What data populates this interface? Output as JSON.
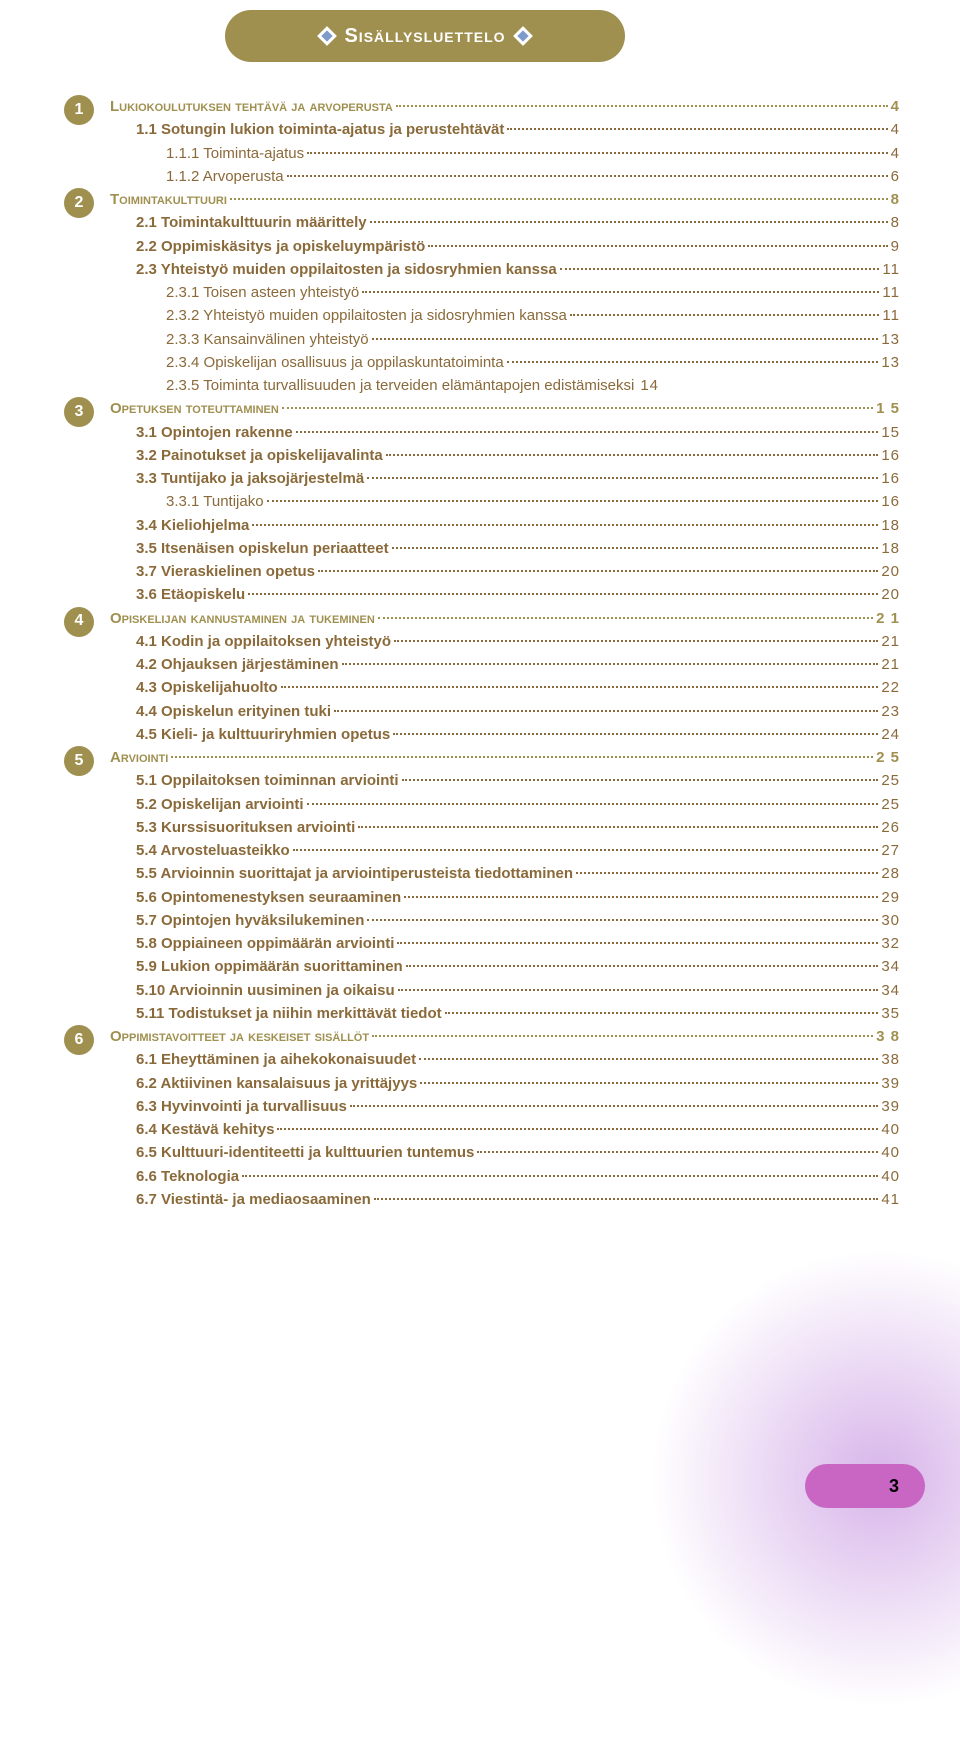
{
  "banner": {
    "title": "Sisällysluettelo"
  },
  "colors": {
    "banner_bg": "#a09050",
    "chapter_text": "#a09050",
    "entry_text": "#8a6a3a",
    "page_badge_bg": "#c966c4",
    "corner_glow": "#b778d8"
  },
  "page_number": "3",
  "toc": [
    {
      "type": "chapter",
      "num": "1",
      "label": "Lukiokoulutuksen tehtävä ja arvoperusta",
      "page": "4"
    },
    {
      "type": "section",
      "indent": 1,
      "label": "1.1 Sotungin lukion toiminta-ajatus ja perustehtävät",
      "page": "4"
    },
    {
      "type": "sub",
      "indent": 2,
      "label": "1.1.1 Toiminta-ajatus",
      "page": "4"
    },
    {
      "type": "sub",
      "indent": 2,
      "label": "1.1.2 Arvoperusta",
      "page": "6"
    },
    {
      "type": "chapter",
      "num": "2",
      "label": "Toimintakulttuuri",
      "page": "8"
    },
    {
      "type": "section",
      "indent": 1,
      "label": "2.1 Toimintakulttuurin määrittely",
      "page": "8"
    },
    {
      "type": "section",
      "indent": 1,
      "label": "2.2 Oppimiskäsitys ja opiskeluympäristö",
      "page": "9"
    },
    {
      "type": "section",
      "indent": 1,
      "label": "2.3 Yhteistyö muiden oppilaitosten ja  sidosryhmien kanssa",
      "page": "11"
    },
    {
      "type": "sub",
      "indent": 2,
      "label": "2.3.1 Toisen asteen yhteistyö",
      "page": "11"
    },
    {
      "type": "sub",
      "indent": 2,
      "label": "2.3.2 Yhteistyö muiden oppilaitosten ja sidosryhmien kanssa",
      "page": "11"
    },
    {
      "type": "sub",
      "indent": 2,
      "label": "2.3.3 Kansainvälinen yhteistyö",
      "page": "13"
    },
    {
      "type": "sub",
      "indent": 2,
      "label": "2.3.4 Opiskelijan osallisuus ja oppilaskuntatoiminta",
      "page": "13"
    },
    {
      "type": "sub-nodots",
      "indent": 2,
      "label": "2.3.5 Toiminta turvallisuuden ja terveiden elämäntapojen edistämiseksi",
      "page": "14"
    },
    {
      "type": "chapter",
      "num": "3",
      "label": "Opetuksen toteuttaminen",
      "page": "1 5"
    },
    {
      "type": "section",
      "indent": 1,
      "label": "3.1 Opintojen rakenne",
      "page": "15"
    },
    {
      "type": "section",
      "indent": 1,
      "label": "3.2 Painotukset ja opiskelijavalinta",
      "page": "16"
    },
    {
      "type": "section",
      "indent": 1,
      "label": "3.3 Tuntijako ja jaksojärjestelmä",
      "page": "16"
    },
    {
      "type": "sub",
      "indent": 2,
      "label": "3.3.1 Tuntijako",
      "page": "16"
    },
    {
      "type": "section",
      "indent": 1,
      "label": "3.4 Kieliohjelma",
      "page": "18"
    },
    {
      "type": "section",
      "indent": 1,
      "label": "3.5 Itsenäisen opiskelun periaatteet",
      "page": "18"
    },
    {
      "type": "section",
      "indent": 1,
      "label": "3.7 Vieraskielinen opetus",
      "page": "20"
    },
    {
      "type": "section",
      "indent": 1,
      "label": "3.6 Etäopiskelu",
      "page": "20"
    },
    {
      "type": "chapter",
      "num": "4",
      "label": "Opiskelijan kannustaminen ja tukeminen",
      "page": "2 1"
    },
    {
      "type": "section",
      "indent": 1,
      "label": "4.1 Kodin ja oppilaitoksen yhteistyö",
      "page": "21"
    },
    {
      "type": "section",
      "indent": 1,
      "label": "4.2 Ohjauksen järjestäminen",
      "page": "21"
    },
    {
      "type": "section",
      "indent": 1,
      "label": "4.3 Opiskelijahuolto",
      "page": "22"
    },
    {
      "type": "section",
      "indent": 1,
      "label": "4.4 Opiskelun erityinen tuki",
      "page": "23"
    },
    {
      "type": "section",
      "indent": 1,
      "label": "4.5 Kieli- ja kulttuuriryhmien opetus",
      "page": "24"
    },
    {
      "type": "chapter",
      "num": "5",
      "label": "Arviointi",
      "page": "2 5"
    },
    {
      "type": "section",
      "indent": 1,
      "label": "5.1 Oppilaitoksen toiminnan arviointi",
      "page": "25"
    },
    {
      "type": "section",
      "indent": 1,
      "label": "5.2 Opiskelijan arviointi",
      "page": "25"
    },
    {
      "type": "section",
      "indent": 1,
      "label": "5.3 Kurssisuorituksen arviointi",
      "page": "26"
    },
    {
      "type": "section",
      "indent": 1,
      "label": "5.4 Arvosteluasteikko",
      "page": "27"
    },
    {
      "type": "section",
      "indent": 1,
      "label": "5.5 Arvioinnin suorittajat ja arviointiperusteista tiedottaminen",
      "page": "28"
    },
    {
      "type": "section",
      "indent": 1,
      "label": "5.6 Opintomenestyksen seuraaminen",
      "page": "29"
    },
    {
      "type": "section",
      "indent": 1,
      "label": "5.7 Opintojen hyväksilukeminen",
      "page": "30"
    },
    {
      "type": "section",
      "indent": 1,
      "label": "5.8 Oppiaineen oppimäärän arviointi",
      "page": "32"
    },
    {
      "type": "section",
      "indent": 1,
      "label": "5.9 Lukion oppimäärän suorittaminen",
      "page": "34"
    },
    {
      "type": "section",
      "indent": 1,
      "label": "5.10 Arvioinnin uusiminen ja oikaisu",
      "page": "34"
    },
    {
      "type": "section",
      "indent": 1,
      "label": "5.11  Todistukset ja niihin merkittävät tiedot",
      "page": "35"
    },
    {
      "type": "chapter",
      "num": "6",
      "label": "Oppimistavoitteet ja keskeiset sisällöt",
      "page": "3 8"
    },
    {
      "type": "section",
      "indent": 1,
      "label": "6.1 Eheyttäminen ja aihekokonaisuudet",
      "page": "38"
    },
    {
      "type": "section",
      "indent": 1,
      "label": "6.2 Aktiivinen kansalaisuus ja yrittäjyys",
      "page": "39"
    },
    {
      "type": "section",
      "indent": 1,
      "label": "6.3 Hyvinvointi ja turvallisuus",
      "page": "39"
    },
    {
      "type": "section",
      "indent": 1,
      "label": "6.4 Kestävä kehitys",
      "page": "40"
    },
    {
      "type": "section",
      "indent": 1,
      "label": "6.5 Kulttuuri-identiteetti ja kulttuurien tuntemus",
      "page": "40"
    },
    {
      "type": "section",
      "indent": 1,
      "label": "6.6 Teknologia",
      "page": "40"
    },
    {
      "type": "section",
      "indent": 1,
      "label": "6.7 Viestintä- ja mediaosaaminen",
      "page": "41"
    }
  ]
}
